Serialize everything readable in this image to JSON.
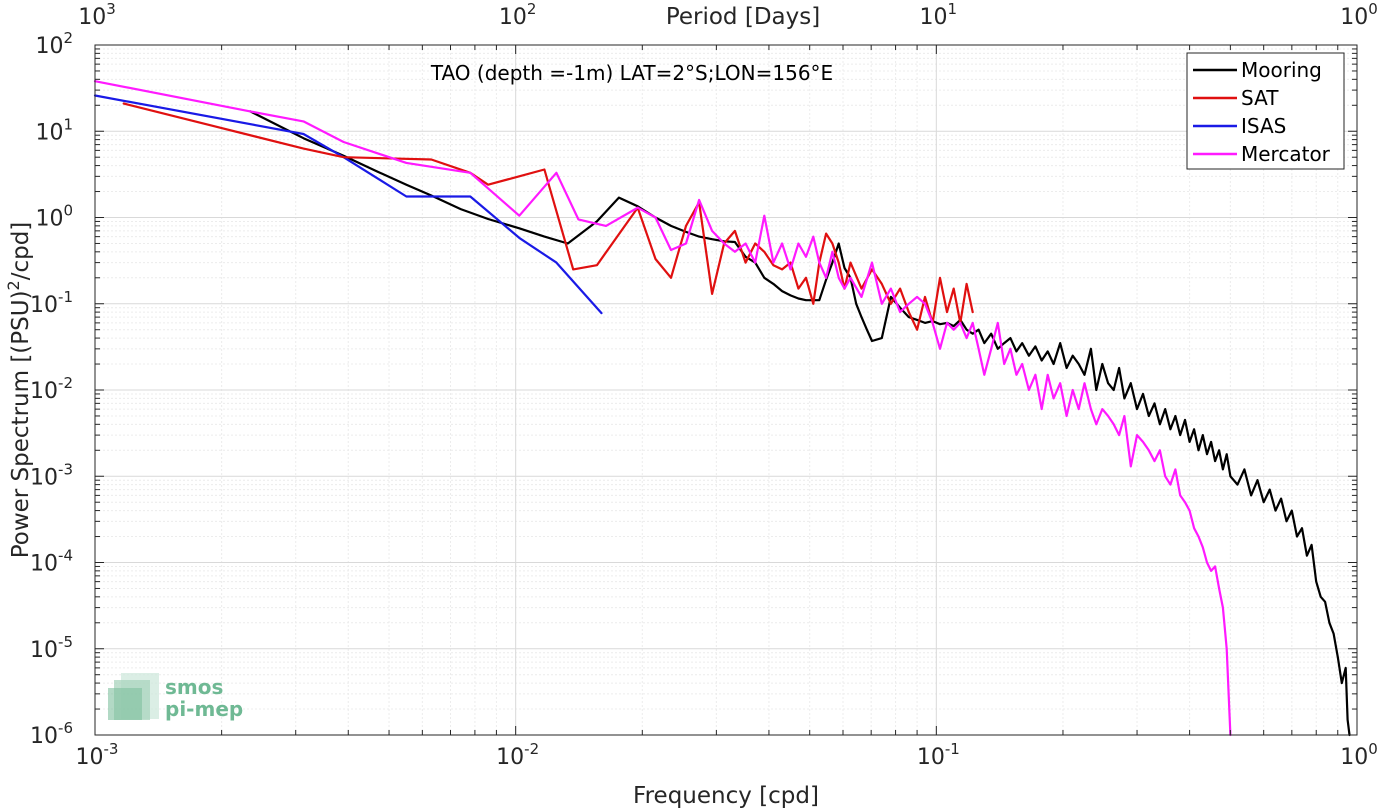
{
  "chart_data": {
    "type": "line",
    "title": "TAO (depth =-1m) LAT=2°S;LON=156°E",
    "xlabel": "Frequency [cpd]",
    "ylabel": "Power Spectrum [(PSU)",
    "ylabel_sup": "2",
    "ylabel_tail": "/cpd]",
    "top_xlabel": "Period [Days]",
    "xscale": "log",
    "yscale": "log",
    "xlim": [
      0.001,
      1
    ],
    "ylim": [
      1e-06,
      100
    ],
    "grid": true,
    "legend_position": "top-right",
    "x_ticks": [
      {
        "base": "10",
        "exp": "-3",
        "value": 0.001
      },
      {
        "base": "10",
        "exp": "-2",
        "value": 0.01
      },
      {
        "base": "10",
        "exp": "-1",
        "value": 0.1
      },
      {
        "base": "10",
        "exp": "0",
        "value": 1
      }
    ],
    "top_ticks": [
      {
        "base": "10",
        "exp": "3",
        "value": 0.001
      },
      {
        "base": "10",
        "exp": "2",
        "value": 0.01
      },
      {
        "base": "10",
        "exp": "1",
        "value": 0.1
      },
      {
        "base": "10",
        "exp": "0",
        "value": 1
      }
    ],
    "y_ticks": [
      {
        "base": "10",
        "exp": "2",
        "value": 100
      },
      {
        "base": "10",
        "exp": "1",
        "value": 10
      },
      {
        "base": "10",
        "exp": "0",
        "value": 1
      },
      {
        "base": "10",
        "exp": "-1",
        "value": 0.1
      },
      {
        "base": "10",
        "exp": "-2",
        "value": 0.01
      },
      {
        "base": "10",
        "exp": "-3",
        "value": 0.001
      },
      {
        "base": "10",
        "exp": "-4",
        "value": 0.0001
      },
      {
        "base": "10",
        "exp": "-5",
        "value": 1e-05
      },
      {
        "base": "10",
        "exp": "-6",
        "value": 1e-06
      }
    ],
    "series": [
      {
        "name": "Mooring",
        "color": "#000000",
        "points": [
          [
            0.00234,
            17
          ],
          [
            0.00313,
            8.3
          ],
          [
            0.0039,
            5.2
          ],
          [
            0.0047,
            3.4
          ],
          [
            0.0055,
            2.4
          ],
          [
            0.0063,
            1.8
          ],
          [
            0.0074,
            1.25
          ],
          [
            0.0086,
            0.96
          ],
          [
            0.0102,
            0.75
          ],
          [
            0.0117,
            0.6
          ],
          [
            0.0133,
            0.5
          ],
          [
            0.0156,
            0.9
          ],
          [
            0.0176,
            1.7
          ],
          [
            0.0195,
            1.35
          ],
          [
            0.0215,
            1.0
          ],
          [
            0.0234,
            0.8
          ],
          [
            0.0254,
            0.68
          ],
          [
            0.0273,
            0.6
          ],
          [
            0.0293,
            0.56
          ],
          [
            0.0313,
            0.53
          ],
          [
            0.0332,
            0.52
          ],
          [
            0.0352,
            0.35
          ],
          [
            0.0371,
            0.3
          ],
          [
            0.039,
            0.2
          ],
          [
            0.041,
            0.17
          ],
          [
            0.043,
            0.14
          ],
          [
            0.045,
            0.125
          ],
          [
            0.047,
            0.115
          ],
          [
            0.049,
            0.11
          ],
          [
            0.051,
            0.11
          ],
          [
            0.0527,
            0.11
          ],
          [
            0.0547,
            0.19
          ],
          [
            0.0566,
            0.3
          ],
          [
            0.0586,
            0.5
          ],
          [
            0.0605,
            0.26
          ],
          [
            0.0625,
            0.2
          ],
          [
            0.0645,
            0.1
          ],
          [
            0.0664,
            0.07
          ],
          [
            0.0684,
            0.05
          ],
          [
            0.0703,
            0.037
          ],
          [
            0.0742,
            0.04
          ],
          [
            0.078,
            0.12
          ],
          [
            0.082,
            0.09
          ],
          [
            0.086,
            0.07
          ],
          [
            0.09,
            0.065
          ],
          [
            0.094,
            0.06
          ],
          [
            0.098,
            0.063
          ],
          [
            0.102,
            0.058
          ],
          [
            0.106,
            0.06
          ],
          [
            0.11,
            0.055
          ],
          [
            0.114,
            0.065
          ],
          [
            0.118,
            0.05
          ],
          [
            0.122,
            0.045
          ],
          [
            0.126,
            0.05
          ],
          [
            0.13,
            0.035
          ],
          [
            0.135,
            0.045
          ],
          [
            0.14,
            0.03
          ],
          [
            0.145,
            0.035
          ],
          [
            0.15,
            0.04
          ],
          [
            0.155,
            0.028
          ],
          [
            0.16,
            0.035
          ],
          [
            0.166,
            0.025
          ],
          [
            0.172,
            0.032
          ],
          [
            0.178,
            0.022
          ],
          [
            0.184,
            0.028
          ],
          [
            0.19,
            0.02
          ],
          [
            0.197,
            0.035
          ],
          [
            0.204,
            0.018
          ],
          [
            0.211,
            0.025
          ],
          [
            0.218,
            0.02
          ],
          [
            0.225,
            0.015
          ],
          [
            0.233,
            0.03
          ],
          [
            0.24,
            0.01
          ],
          [
            0.248,
            0.02
          ],
          [
            0.256,
            0.012
          ],
          [
            0.264,
            0.01
          ],
          [
            0.272,
            0.018
          ],
          [
            0.28,
            0.008
          ],
          [
            0.29,
            0.012
          ],
          [
            0.3,
            0.006
          ],
          [
            0.31,
            0.009
          ],
          [
            0.32,
            0.005
          ],
          [
            0.33,
            0.007
          ],
          [
            0.34,
            0.004
          ],
          [
            0.35,
            0.006
          ],
          [
            0.36,
            0.0035
          ],
          [
            0.37,
            0.005
          ],
          [
            0.38,
            0.003
          ],
          [
            0.39,
            0.0045
          ],
          [
            0.4,
            0.0025
          ],
          [
            0.41,
            0.0035
          ],
          [
            0.42,
            0.002
          ],
          [
            0.43,
            0.003
          ],
          [
            0.44,
            0.0018
          ],
          [
            0.45,
            0.0025
          ],
          [
            0.46,
            0.0015
          ],
          [
            0.47,
            0.002
          ],
          [
            0.48,
            0.0012
          ],
          [
            0.49,
            0.0018
          ],
          [
            0.5,
            0.001
          ],
          [
            0.52,
            0.0008
          ],
          [
            0.54,
            0.0012
          ],
          [
            0.56,
            0.0006
          ],
          [
            0.58,
            0.0009
          ],
          [
            0.6,
            0.0005
          ],
          [
            0.62,
            0.0007
          ],
          [
            0.64,
            0.0004
          ],
          [
            0.66,
            0.00055
          ],
          [
            0.68,
            0.0003
          ],
          [
            0.7,
            0.0004
          ],
          [
            0.72,
            0.0002
          ],
          [
            0.74,
            0.00025
          ],
          [
            0.76,
            0.00012
          ],
          [
            0.78,
            0.00016
          ],
          [
            0.8,
            6e-05
          ],
          [
            0.82,
            4e-05
          ],
          [
            0.84,
            3.5e-05
          ],
          [
            0.86,
            2e-05
          ],
          [
            0.88,
            1.5e-05
          ],
          [
            0.9,
            8e-06
          ],
          [
            0.92,
            4e-06
          ],
          [
            0.94,
            6e-06
          ],
          [
            0.95,
            1.5e-06
          ],
          [
            0.96,
            1e-06
          ]
        ]
      },
      {
        "name": "SAT",
        "color": "#e01010",
        "points": [
          [
            0.00117,
            21
          ],
          [
            0.00313,
            6.3
          ],
          [
            0.0039,
            5.0
          ],
          [
            0.0063,
            4.7
          ],
          [
            0.0078,
            3.3
          ],
          [
            0.0086,
            2.4
          ],
          [
            0.0102,
            3.0
          ],
          [
            0.0117,
            3.6
          ],
          [
            0.0137,
            0.25
          ],
          [
            0.0156,
            0.28
          ],
          [
            0.0195,
            1.3
          ],
          [
            0.0215,
            0.33
          ],
          [
            0.0234,
            0.2
          ],
          [
            0.0254,
            0.8
          ],
          [
            0.0273,
            1.5
          ],
          [
            0.0293,
            0.13
          ],
          [
            0.0313,
            0.5
          ],
          [
            0.0332,
            0.7
          ],
          [
            0.0352,
            0.3
          ],
          [
            0.0371,
            0.5
          ],
          [
            0.039,
            0.4
          ],
          [
            0.041,
            0.28
          ],
          [
            0.043,
            0.25
          ],
          [
            0.045,
            0.3
          ],
          [
            0.047,
            0.15
          ],
          [
            0.049,
            0.2
          ],
          [
            0.051,
            0.1
          ],
          [
            0.0527,
            0.3
          ],
          [
            0.0547,
            0.65
          ],
          [
            0.0566,
            0.5
          ],
          [
            0.0586,
            0.3
          ],
          [
            0.0605,
            0.15
          ],
          [
            0.0625,
            0.3
          ],
          [
            0.0664,
            0.15
          ],
          [
            0.0703,
            0.25
          ],
          [
            0.0742,
            0.17
          ],
          [
            0.078,
            0.1
          ],
          [
            0.082,
            0.15
          ],
          [
            0.086,
            0.08
          ],
          [
            0.09,
            0.05
          ],
          [
            0.094,
            0.12
          ],
          [
            0.098,
            0.06
          ],
          [
            0.102,
            0.2
          ],
          [
            0.106,
            0.08
          ],
          [
            0.11,
            0.15
          ],
          [
            0.114,
            0.06
          ],
          [
            0.118,
            0.17
          ],
          [
            0.122,
            0.08
          ]
        ]
      },
      {
        "name": "ISAS",
        "color": "#1a1ae6",
        "points": [
          [
            0.001,
            26
          ],
          [
            0.00313,
            9.3
          ],
          [
            0.0039,
            5.0
          ],
          [
            0.0055,
            1.75
          ],
          [
            0.0063,
            1.75
          ],
          [
            0.0078,
            1.75
          ],
          [
            0.0102,
            0.58
          ],
          [
            0.0125,
            0.3
          ],
          [
            0.016,
            0.078
          ]
        ]
      },
      {
        "name": "Mercator",
        "color": "#ff1aff",
        "points": [
          [
            0.001,
            38
          ],
          [
            0.00234,
            17
          ],
          [
            0.00313,
            13
          ],
          [
            0.0039,
            7.5
          ],
          [
            0.0055,
            4.3
          ],
          [
            0.0078,
            3.3
          ],
          [
            0.0102,
            1.05
          ],
          [
            0.0125,
            3.3
          ],
          [
            0.0141,
            0.95
          ],
          [
            0.0164,
            0.8
          ],
          [
            0.0195,
            1.3
          ],
          [
            0.0215,
            1.0
          ],
          [
            0.0234,
            0.42
          ],
          [
            0.0254,
            0.5
          ],
          [
            0.0273,
            1.6
          ],
          [
            0.0293,
            0.7
          ],
          [
            0.0313,
            0.5
          ],
          [
            0.0332,
            0.4
          ],
          [
            0.0352,
            0.5
          ],
          [
            0.0371,
            0.3
          ],
          [
            0.039,
            1.05
          ],
          [
            0.041,
            0.3
          ],
          [
            0.043,
            0.5
          ],
          [
            0.045,
            0.25
          ],
          [
            0.047,
            0.5
          ],
          [
            0.049,
            0.35
          ],
          [
            0.051,
            0.6
          ],
          [
            0.0527,
            0.3
          ],
          [
            0.0547,
            0.2
          ],
          [
            0.0566,
            0.4
          ],
          [
            0.0586,
            0.2
          ],
          [
            0.0605,
            0.15
          ],
          [
            0.0625,
            0.2
          ],
          [
            0.0664,
            0.12
          ],
          [
            0.0703,
            0.3
          ],
          [
            0.0742,
            0.1
          ],
          [
            0.078,
            0.15
          ],
          [
            0.082,
            0.08
          ],
          [
            0.086,
            0.1
          ],
          [
            0.09,
            0.12
          ],
          [
            0.094,
            0.1
          ],
          [
            0.098,
            0.06
          ],
          [
            0.102,
            0.03
          ],
          [
            0.106,
            0.06
          ],
          [
            0.11,
            0.05
          ],
          [
            0.114,
            0.06
          ],
          [
            0.118,
            0.04
          ],
          [
            0.122,
            0.06
          ],
          [
            0.126,
            0.03
          ],
          [
            0.13,
            0.015
          ],
          [
            0.135,
            0.03
          ],
          [
            0.14,
            0.06
          ],
          [
            0.145,
            0.02
          ],
          [
            0.15,
            0.03
          ],
          [
            0.155,
            0.015
          ],
          [
            0.16,
            0.02
          ],
          [
            0.166,
            0.01
          ],
          [
            0.172,
            0.015
          ],
          [
            0.178,
            0.006
          ],
          [
            0.184,
            0.015
          ],
          [
            0.19,
            0.008
          ],
          [
            0.197,
            0.012
          ],
          [
            0.204,
            0.005
          ],
          [
            0.211,
            0.01
          ],
          [
            0.218,
            0.006
          ],
          [
            0.225,
            0.012
          ],
          [
            0.233,
            0.006
          ],
          [
            0.24,
            0.004
          ],
          [
            0.248,
            0.006
          ],
          [
            0.256,
            0.005
          ],
          [
            0.264,
            0.004
          ],
          [
            0.272,
            0.003
          ],
          [
            0.28,
            0.005
          ],
          [
            0.29,
            0.0013
          ],
          [
            0.3,
            0.003
          ],
          [
            0.31,
            0.0025
          ],
          [
            0.32,
            0.002
          ],
          [
            0.33,
            0.0015
          ],
          [
            0.34,
            0.002
          ],
          [
            0.35,
            0.001
          ],
          [
            0.36,
            0.0008
          ],
          [
            0.37,
            0.0012
          ],
          [
            0.38,
            0.0006
          ],
          [
            0.39,
            0.0005
          ],
          [
            0.4,
            0.0004
          ],
          [
            0.41,
            0.00025
          ],
          [
            0.42,
            0.0002
          ],
          [
            0.43,
            0.00015
          ],
          [
            0.44,
            0.0001
          ],
          [
            0.45,
            8e-05
          ],
          [
            0.46,
            9e-05
          ],
          [
            0.47,
            5e-05
          ],
          [
            0.48,
            3e-05
          ],
          [
            0.49,
            1e-05
          ],
          [
            0.5,
            1e-06
          ]
        ]
      }
    ]
  },
  "logo": {
    "line1": "smos",
    "line2": "pi-mep"
  }
}
